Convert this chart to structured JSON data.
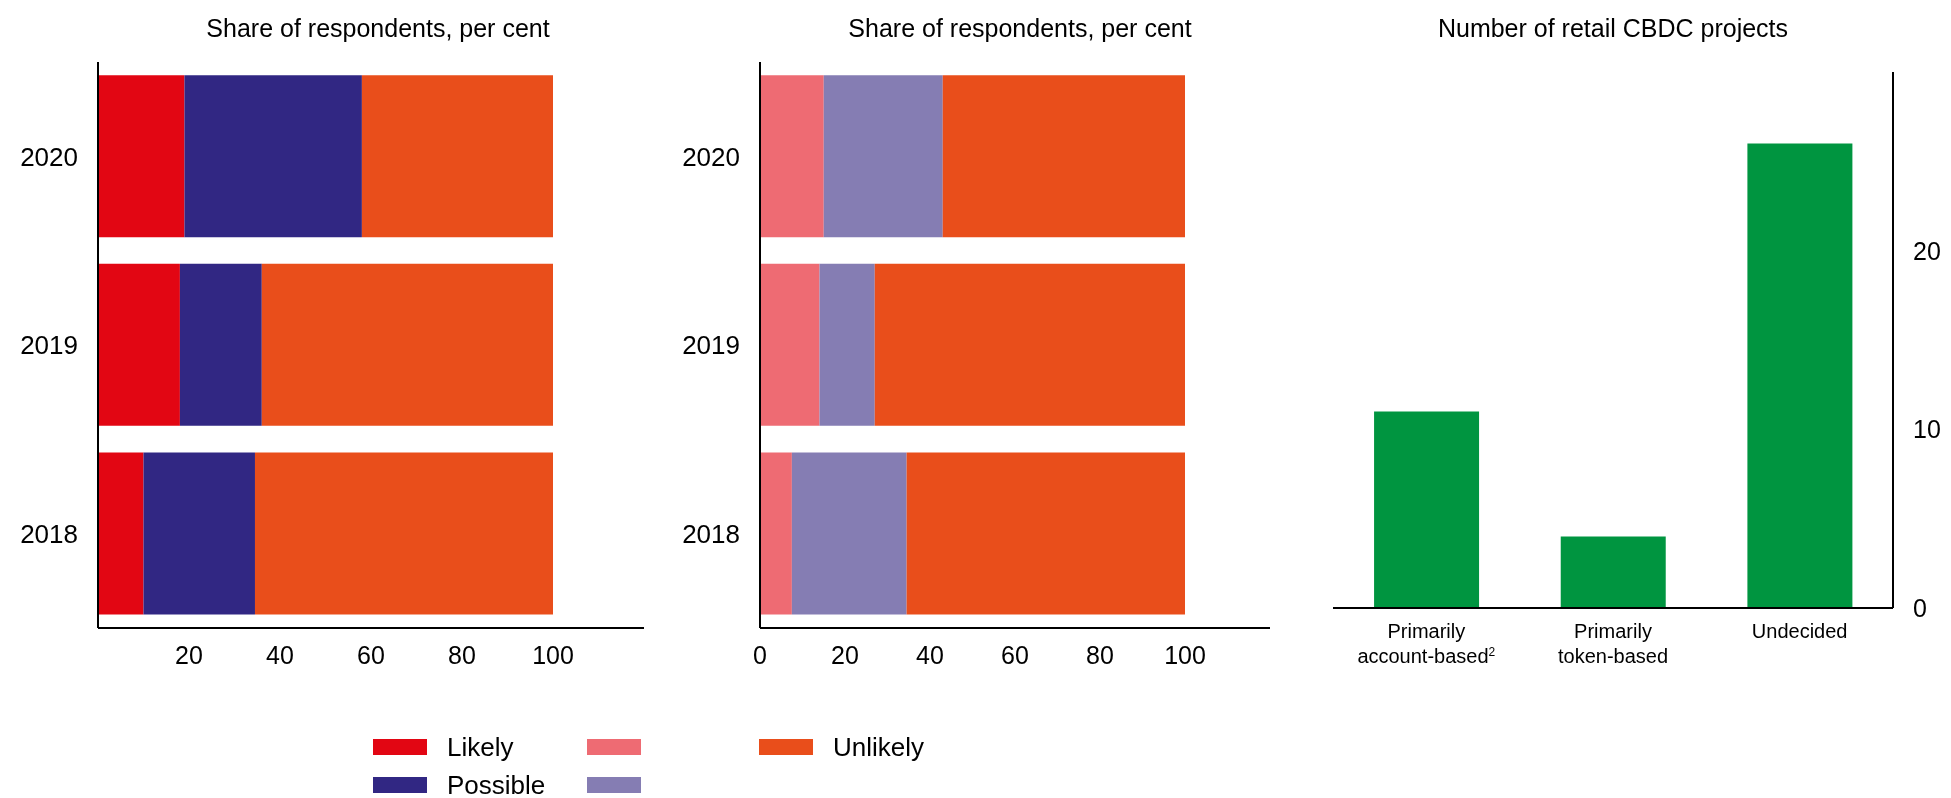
{
  "chart_data": [
    {
      "type": "bar",
      "title": "Share of respondents, per cent",
      "orientation": "horizontal",
      "stacked": true,
      "categories": [
        "2020",
        "2019",
        "2018"
      ],
      "xlim": [
        0,
        120
      ],
      "xticks": [
        20,
        40,
        60,
        80,
        100
      ],
      "legend": "bottom",
      "series": [
        {
          "name": "Likely",
          "color": "#e20613",
          "values": [
            19,
            18,
            10
          ]
        },
        {
          "name": "Possible",
          "color": "#312783",
          "values": [
            39,
            18,
            24.5
          ]
        },
        {
          "name": "Unlikely",
          "color": "#e94e1b",
          "values": [
            42,
            64,
            65.5
          ]
        }
      ]
    },
    {
      "type": "bar",
      "title": "Share of respondents, per cent",
      "orientation": "horizontal",
      "stacked": true,
      "categories": [
        "2020",
        "2019",
        "2018"
      ],
      "xlim": [
        0,
        120
      ],
      "xticks": [
        0,
        20,
        40,
        60,
        80,
        100
      ],
      "legend": "bottom",
      "series": [
        {
          "color": "#ee6b73",
          "values": [
            15,
            14,
            7.5
          ]
        },
        {
          "color": "#857db3",
          "values": [
            28,
            13,
            27
          ]
        },
        {
          "color": "#e94e1b",
          "values": [
            57,
            73,
            65.5
          ]
        }
      ]
    },
    {
      "type": "bar",
      "title": "Number of retail CBDC projects",
      "categories": [
        "Primarily account-based$^{2}$",
        "Primarily token-based",
        "Undecided"
      ],
      "values": [
        11,
        4,
        26
      ],
      "color": "#009540",
      "ylim": [
        0,
        30
      ],
      "yticks": [
        0,
        10,
        20
      ]
    }
  ]
}
